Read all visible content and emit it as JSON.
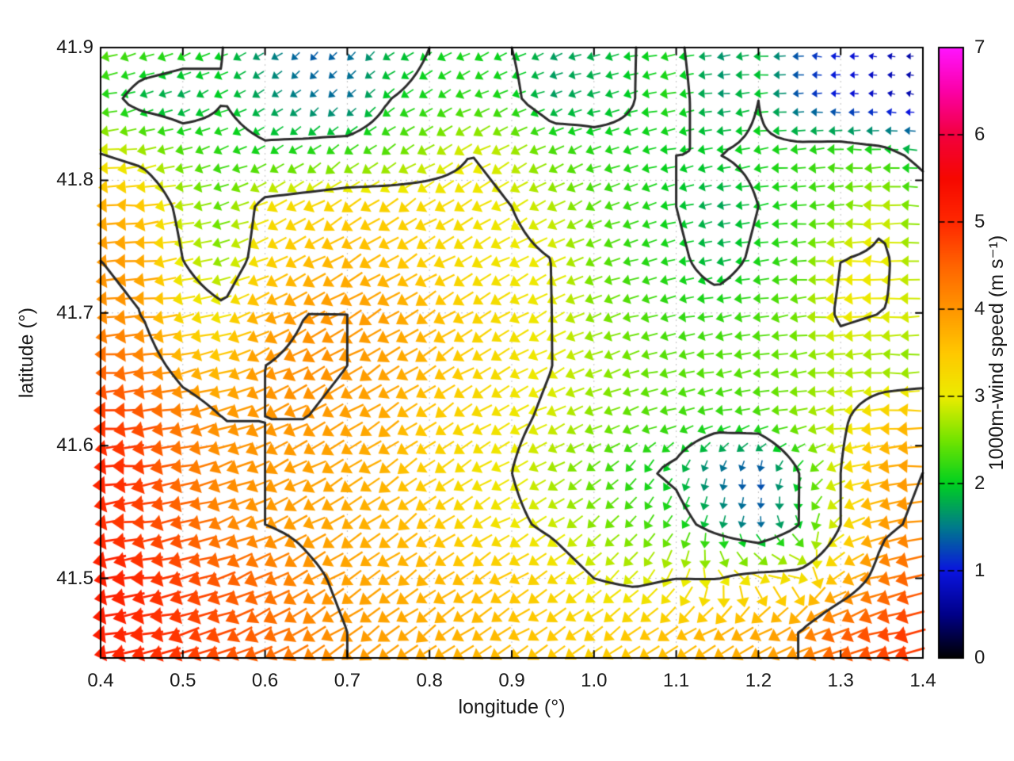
{
  "axes": {
    "xlabel": "longitude (°)",
    "ylabel": "latitude (°)"
  },
  "colorbar": {
    "label": "1000m-wind speed (m s⁻¹)",
    "min": 0,
    "max": 7,
    "tick_labels": [
      "0",
      "1",
      "2",
      "3",
      "4",
      "5",
      "6",
      "7"
    ]
  },
  "chart_data": {
    "type": "quiver",
    "title": "",
    "xlabel": "longitude (°)",
    "ylabel": "latitude (°)",
    "xlim": [
      0.4,
      1.4
    ],
    "ylim": [
      41.44,
      41.9
    ],
    "x_ticks": [
      0.4,
      0.5,
      0.6,
      0.7,
      0.8,
      0.9,
      1.0,
      1.1,
      1.2,
      1.3,
      1.4
    ],
    "x_tick_labels": [
      "0.4",
      "0.5",
      "0.6",
      "0.7",
      "0.8",
      "0.9",
      "1.0",
      "1.1",
      "1.2",
      "1.3",
      "1.4"
    ],
    "y_ticks": [
      41.5,
      41.6,
      41.7,
      41.8,
      41.9
    ],
    "y_tick_labels": [
      "41.5",
      "41.6",
      "41.7",
      "41.8",
      "41.9"
    ],
    "grid_on": true,
    "legend_position": "none",
    "colorbar": {
      "label": "1000m-wind speed (m s⁻¹)",
      "min": 0,
      "max": 7,
      "ticks": [
        0,
        1,
        2,
        3,
        4,
        5,
        6,
        7
      ]
    },
    "palette_stops": [
      [
        0,
        "#000000"
      ],
      [
        0.5,
        "#000088"
      ],
      [
        1,
        "#0a14e0"
      ],
      [
        1.5,
        "#007a8c"
      ],
      [
        2,
        "#00d020"
      ],
      [
        2.5,
        "#72e400"
      ],
      [
        3,
        "#ecec00"
      ],
      [
        3.5,
        "#ffc800"
      ],
      [
        4,
        "#ff9600"
      ],
      [
        4.5,
        "#ff6400"
      ],
      [
        5,
        "#ff2800"
      ],
      [
        5.5,
        "#f60800"
      ],
      [
        6,
        "#f2003e"
      ],
      [
        6.5,
        "#fb00a6"
      ],
      [
        7,
        "#ff14ff"
      ]
    ],
    "contour_levels": [
      2,
      3,
      4
    ],
    "contour_color": "#2b2b2b",
    "field_comment": "speed in m/s and arrow direction in degrees CCW from east, sampled on lon x lat grid; lat listed north to south",
    "field": {
      "lon": [
        0.4,
        0.45,
        0.5,
        0.55,
        0.6,
        0.65,
        0.7,
        0.75,
        0.8,
        0.85,
        0.9,
        0.95,
        1.0,
        1.05,
        1.1,
        1.15,
        1.2,
        1.25,
        1.3,
        1.35,
        1.4
      ],
      "lat": [
        41.9,
        41.86,
        41.82,
        41.78,
        41.74,
        41.7,
        41.66,
        41.62,
        41.58,
        41.54,
        41.5,
        41.46
      ],
      "speed": [
        [
          2.4,
          2.3,
          2.2,
          2.0,
          1.6,
          1.3,
          1.4,
          1.8,
          2.0,
          2.1,
          2.0,
          1.7,
          1.8,
          2.0,
          2.1,
          1.6,
          1.9,
          1.3,
          1.0,
          0.8,
          0.6
        ],
        [
          2.2,
          1.8,
          1.7,
          2.0,
          1.7,
          1.5,
          1.4,
          2.0,
          2.1,
          2.2,
          2.1,
          1.7,
          1.8,
          2.0,
          2.2,
          1.6,
          2.0,
          1.3,
          1.0,
          0.8,
          0.7
        ],
        [
          3.0,
          2.8,
          2.4,
          2.2,
          2.1,
          2.2,
          2.3,
          2.4,
          2.7,
          3.0,
          2.8,
          2.4,
          2.2,
          2.1,
          2.0,
          2.0,
          2.1,
          2.2,
          2.3,
          2.2,
          1.8
        ],
        [
          3.8,
          3.6,
          2.8,
          2.4,
          3.2,
          3.3,
          3.4,
          3.4,
          3.3,
          3.2,
          3.0,
          2.8,
          2.4,
          2.2,
          2.0,
          1.7,
          2.0,
          2.2,
          2.4,
          2.9,
          2.4
        ],
        [
          4.0,
          3.9,
          3.0,
          2.6,
          3.3,
          3.6,
          3.7,
          3.6,
          3.4,
          3.2,
          3.1,
          3.0,
          2.5,
          2.2,
          2.1,
          1.8,
          2.1,
          2.3,
          3.0,
          3.1,
          2.6
        ],
        [
          4.1,
          4.0,
          3.3,
          3.1,
          3.8,
          4.0,
          4.0,
          3.9,
          3.7,
          3.4,
          3.2,
          3.0,
          2.6,
          2.4,
          2.2,
          2.2,
          2.3,
          2.5,
          3.1,
          3.0,
          2.9
        ],
        [
          4.5,
          4.3,
          3.8,
          3.6,
          4.0,
          4.1,
          4.0,
          3.9,
          3.7,
          3.4,
          3.2,
          3.0,
          2.7,
          2.5,
          2.4,
          2.4,
          2.4,
          2.5,
          2.7,
          2.6,
          2.5
        ],
        [
          4.9,
          4.7,
          4.3,
          4.0,
          4.0,
          4.0,
          3.9,
          3.8,
          3.5,
          3.3,
          3.1,
          2.9,
          2.6,
          2.4,
          2.3,
          2.2,
          2.3,
          2.6,
          2.9,
          3.4,
          3.7
        ],
        [
          5.1,
          4.9,
          4.4,
          4.1,
          4.0,
          3.9,
          3.8,
          3.7,
          3.4,
          3.2,
          3.0,
          2.7,
          2.4,
          2.1,
          1.9,
          1.4,
          1.2,
          2.0,
          3.0,
          3.8,
          4.0
        ],
        [
          5.0,
          4.8,
          4.6,
          4.2,
          4.0,
          3.9,
          3.8,
          3.7,
          3.6,
          3.3,
          3.1,
          2.9,
          2.6,
          2.4,
          2.2,
          1.8,
          1.4,
          2.0,
          3.0,
          3.9,
          4.1
        ],
        [
          5.2,
          5.0,
          4.8,
          4.6,
          4.4,
          4.1,
          3.9,
          3.8,
          3.7,
          3.6,
          3.5,
          3.3,
          3.0,
          2.9,
          3.0,
          3.0,
          3.2,
          3.2,
          3.6,
          4.2,
          4.6
        ],
        [
          5.2,
          5.0,
          4.9,
          4.7,
          4.5,
          4.2,
          4.0,
          3.9,
          3.8,
          3.7,
          3.6,
          3.5,
          3.4,
          3.5,
          3.6,
          3.7,
          3.8,
          4.0,
          4.5,
          4.7,
          4.9
        ]
      ],
      "dir_deg": [
        [
          190,
          195,
          200,
          205,
          215,
          225,
          225,
          215,
          212,
          208,
          205,
          200,
          196,
          192,
          190,
          186,
          184,
          180,
          178,
          175,
          172
        ],
        [
          192,
          198,
          202,
          205,
          210,
          220,
          225,
          215,
          210,
          205,
          200,
          200,
          195,
          195,
          190,
          185,
          185,
          180,
          180,
          175,
          170
        ],
        [
          185,
          190,
          195,
          200,
          210,
          215,
          215,
          212,
          210,
          210,
          208,
          205,
          200,
          195,
          192,
          190,
          188,
          185,
          182,
          180,
          178
        ],
        [
          182,
          185,
          190,
          195,
          205,
          210,
          212,
          212,
          212,
          210,
          210,
          208,
          205,
          200,
          195,
          190,
          188,
          185,
          182,
          180,
          178
        ],
        [
          183,
          185,
          190,
          198,
          205,
          208,
          210,
          210,
          210,
          210,
          208,
          205,
          200,
          197,
          193,
          190,
          188,
          185,
          182,
          180,
          178
        ],
        [
          183,
          185,
          190,
          195,
          205,
          208,
          210,
          210,
          212,
          212,
          210,
          207,
          200,
          196,
          192,
          190,
          188,
          186,
          183,
          181,
          179
        ],
        [
          184,
          186,
          190,
          196,
          205,
          208,
          210,
          211,
          212,
          212,
          210,
          206,
          200,
          196,
          192,
          190,
          188,
          186,
          184,
          182,
          180
        ],
        [
          185,
          187,
          191,
          196,
          204,
          208,
          211,
          213,
          213,
          212,
          208,
          204,
          200,
          197,
          194,
          195,
          190,
          188,
          186,
          184,
          182
        ],
        [
          186,
          188,
          192,
          197,
          204,
          208,
          212,
          214,
          214,
          212,
          208,
          210,
          215,
          230,
          245,
          260,
          268,
          235,
          200,
          188,
          185
        ],
        [
          187,
          189,
          193,
          198,
          204,
          209,
          213,
          215,
          214,
          212,
          210,
          213,
          220,
          228,
          240,
          255,
          268,
          295,
          215,
          192,
          186
        ],
        [
          188,
          190,
          194,
          199,
          205,
          210,
          214,
          216,
          215,
          213,
          212,
          214,
          220,
          228,
          245,
          295,
          335,
          345,
          205,
          196,
          190
        ],
        [
          188,
          191,
          195,
          200,
          206,
          211,
          215,
          216,
          215,
          214,
          213,
          214,
          215,
          215,
          213,
          210,
          207,
          204,
          200,
          196,
          192
        ]
      ]
    }
  }
}
